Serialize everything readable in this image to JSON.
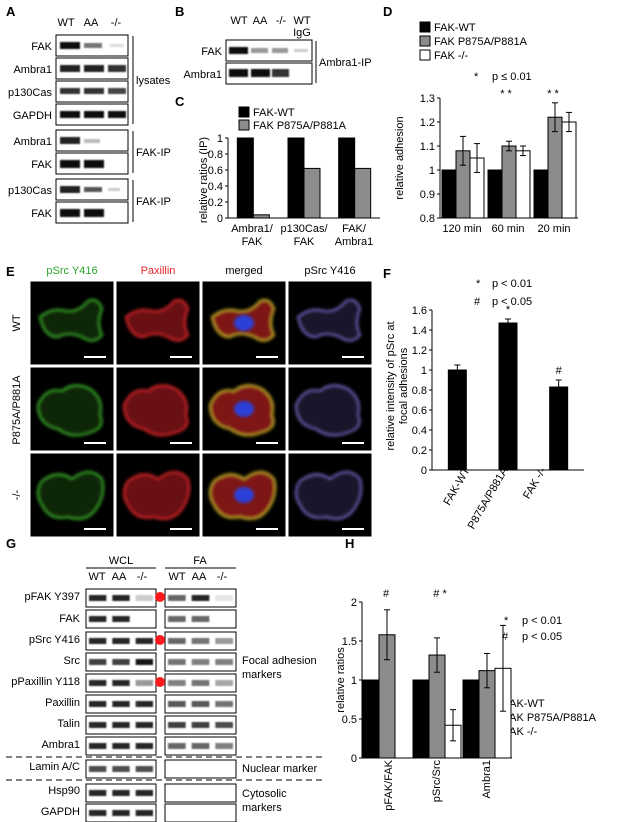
{
  "panels": {
    "A": {
      "letter": "A",
      "lanes": [
        "WT",
        "AA",
        "-/-"
      ],
      "rows": [
        "FAK",
        "Ambra1",
        "p130Cas",
        "GAPDH",
        "Ambra1",
        "FAK",
        "p130Cas",
        "FAK"
      ],
      "group_labels": [
        "lysates",
        "FAK-IP",
        "FAK-IP"
      ]
    },
    "B": {
      "letter": "B",
      "lanes": [
        "WT",
        "AA",
        "-/-",
        "WT",
        "IgG"
      ],
      "rows": [
        "FAK",
        "Ambra1"
      ],
      "group_label": "Ambra1-IP"
    },
    "C": {
      "letter": "C",
      "legend": [
        "FAK-WT",
        "FAK P875A/P881A"
      ],
      "ylabel": "relative ratios (IP)",
      "yticks": [
        "0",
        "0.2",
        "0.4",
        "0.6",
        "0.8",
        "1"
      ],
      "xcats_line1": [
        "Ambra1/",
        "p130Cas/",
        "FAK/"
      ],
      "xcats_line2": [
        "FAK",
        "FAK",
        "Ambra1"
      ]
    },
    "D": {
      "letter": "D",
      "legend": [
        "FAK-WT",
        "FAK P875A/P881A",
        "FAK -/-"
      ],
      "sig_star": "*",
      "sig_text": "p ≤ 0.01",
      "stars": [
        "* *",
        "* *"
      ],
      "ylabel": "relative adhesion",
      "yticks": [
        "0.8",
        "0.9",
        "1",
        "1.1",
        "1.2",
        "1.3"
      ],
      "xcats": [
        "120 min",
        "60 min",
        "20 min"
      ]
    },
    "E": {
      "letter": "E",
      "col_labels": [
        "pSrc Y416",
        "Paxillin",
        "merged",
        "pSrc Y416"
      ],
      "row_labels": [
        "WT",
        "P875A/P881A",
        "-/-"
      ]
    },
    "F": {
      "letter": "F",
      "sig": [
        {
          "symbol": "*",
          "text": "p < 0.01"
        },
        {
          "symbol": "#",
          "text": "p < 0.05"
        }
      ],
      "bar_marks": [
        "*",
        "#"
      ],
      "ylabel_line1": "relative intensity of pSrc at",
      "ylabel_line2": "focal adhesions",
      "yticks": [
        "0",
        "0.2",
        "0.4",
        "0.6",
        "0.8",
        "1",
        "1.2",
        "1.4",
        "1.6"
      ],
      "xcats": [
        "FAK-WT",
        "P875A/P881A",
        "FAK -/-"
      ]
    },
    "G": {
      "letter": "G",
      "col_group_left": "WCL",
      "col_group_right": "FA",
      "lanes": [
        "WT",
        "AA",
        "-/-"
      ],
      "rows": [
        "pFAK Y397",
        "FAK",
        "pSrc Y416",
        "Src",
        "pPaxillin Y118",
        "Paxillin",
        "Talin",
        "Ambra1",
        "Lamin A/C",
        "Hsp90",
        "GAPDH"
      ],
      "markers": [
        "Focal adhesion",
        "markers",
        "Nuclear marker",
        "Cytosolic",
        "markers"
      ]
    },
    "H": {
      "letter": "H",
      "sig": [
        {
          "symbol": "*",
          "text": "p < 0.01"
        },
        {
          "symbol": "#",
          "text": "p < 0.05"
        }
      ],
      "legend": [
        "FAK-WT",
        "FAK P875A/P881A",
        "FAK -/-"
      ],
      "marks": [
        "#",
        "# *"
      ],
      "ylabel": "relative ratios",
      "yticks": [
        "0",
        "0.5",
        "1",
        "1.5",
        "2"
      ],
      "xcats": [
        "pFAK/FAK",
        "pSrc/Src",
        "Ambra1"
      ]
    }
  },
  "colors": {
    "wt": "#000000",
    "aa": "#8c8c8c",
    "ko": "#ffffff",
    "green": "#3fbf2f",
    "red": "#e8262a",
    "purple": "#7a6fd0",
    "marker_dot": "#ff1a1a"
  },
  "chart_data": [
    {
      "type": "bar",
      "panel": "C",
      "categories": [
        "Ambra1/FAK",
        "p130Cas/FAK",
        "FAK/Ambra1"
      ],
      "series": [
        {
          "name": "FAK-WT",
          "values": [
            1.0,
            1.0,
            1.0
          ]
        },
        {
          "name": "FAK P875A/P881A",
          "values": [
            0.04,
            0.62,
            0.62
          ]
        }
      ],
      "ylabel": "relative ratios (IP)",
      "ylim": [
        0,
        1.0
      ]
    },
    {
      "type": "bar",
      "panel": "D",
      "categories": [
        "120 min",
        "60 min",
        "20 min"
      ],
      "series": [
        {
          "name": "FAK-WT",
          "values": [
            1.0,
            1.0,
            1.0
          ],
          "errors": [
            0,
            0,
            0
          ]
        },
        {
          "name": "FAK P875A/P881A",
          "values": [
            1.08,
            1.1,
            1.22
          ],
          "errors": [
            0.06,
            0.02,
            0.06
          ]
        },
        {
          "name": "FAK -/-",
          "values": [
            1.05,
            1.08,
            1.2
          ],
          "errors": [
            0.06,
            0.02,
            0.04
          ]
        }
      ],
      "ylabel": "relative adhesion",
      "ylim": [
        0.8,
        1.3
      ]
    },
    {
      "type": "bar",
      "panel": "F",
      "categories": [
        "FAK-WT",
        "P875A/P881A",
        "FAK -/-"
      ],
      "values": [
        1.0,
        1.47,
        0.83
      ],
      "errors": [
        0.05,
        0.04,
        0.07
      ],
      "ylabel": "relative intensity of pSrc at focal adhesions",
      "ylim": [
        0,
        1.6
      ]
    },
    {
      "type": "bar",
      "panel": "H",
      "categories": [
        "pFAK/FAK",
        "pSrc/Src",
        "Ambra1"
      ],
      "series": [
        {
          "name": "FAK-WT",
          "values": [
            1.0,
            1.0,
            1.0
          ],
          "errors": [
            0,
            0,
            0
          ]
        },
        {
          "name": "FAK P875A/P881A",
          "values": [
            1.58,
            1.32,
            1.12
          ],
          "errors": [
            0.32,
            0.22,
            0.22
          ]
        },
        {
          "name": "FAK -/-",
          "values": [
            null,
            0.42,
            1.15
          ],
          "errors": [
            null,
            0.2,
            0.55
          ]
        }
      ],
      "ylabel": "relative ratios",
      "ylim": [
        0,
        2
      ]
    }
  ]
}
